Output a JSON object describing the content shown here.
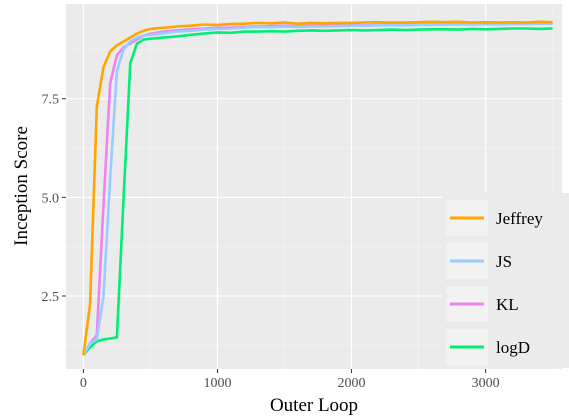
{
  "chart_data": {
    "type": "line",
    "title": "",
    "xlabel": "Outer Loop",
    "ylabel": "Inception Score",
    "xlim": [
      -130,
      3570
    ],
    "ylim": [
      0.65,
      9.9
    ],
    "x_ticks": [
      0,
      1000,
      2000,
      3000
    ],
    "x_tick_labels": [
      "0",
      "1000",
      "2000",
      "3000"
    ],
    "y_ticks": [
      2.5,
      5.0,
      7.5
    ],
    "y_tick_labels": [
      "2.5",
      "5.0",
      "7.5"
    ],
    "grid": true,
    "legend_position": "bottom-right",
    "series": [
      {
        "name": "Jeffrey",
        "color": "#ffa500",
        "x": [
          0,
          50,
          100,
          150,
          200,
          250,
          300,
          350,
          400,
          450,
          500,
          600,
          700,
          800,
          900,
          1000,
          1100,
          1200,
          1300,
          1400,
          1500,
          1600,
          1700,
          1800,
          1900,
          2000,
          2100,
          2200,
          2300,
          2400,
          2500,
          2600,
          2700,
          2800,
          2900,
          3000,
          3100,
          3200,
          3300,
          3400,
          3500
        ],
        "y": [
          1.0,
          2.3,
          7.3,
          8.3,
          8.7,
          8.85,
          8.95,
          9.05,
          9.15,
          9.22,
          9.27,
          9.3,
          9.33,
          9.35,
          9.38,
          9.37,
          9.39,
          9.4,
          9.42,
          9.41,
          9.43,
          9.4,
          9.42,
          9.41,
          9.42,
          9.42,
          9.43,
          9.44,
          9.43,
          9.43,
          9.44,
          9.45,
          9.44,
          9.45,
          9.43,
          9.44,
          9.43,
          9.44,
          9.43,
          9.45,
          9.44
        ]
      },
      {
        "name": "JS",
        "color": "#99ccff",
        "x": [
          0,
          50,
          100,
          150,
          200,
          250,
          300,
          350,
          400,
          450,
          500,
          600,
          700,
          800,
          900,
          1000,
          1100,
          1200,
          1300,
          1400,
          1500,
          1600,
          1700,
          1800,
          1900,
          2000,
          2100,
          2200,
          2300,
          2400,
          2500,
          2600,
          2700,
          2800,
          2900,
          3000,
          3100,
          3200,
          3300,
          3400,
          3500
        ],
        "y": [
          1.0,
          1.3,
          1.4,
          2.5,
          5.5,
          8.2,
          8.75,
          8.95,
          9.05,
          9.1,
          9.12,
          9.16,
          9.2,
          9.22,
          9.25,
          9.27,
          9.28,
          9.3,
          9.32,
          9.31,
          9.33,
          9.32,
          9.33,
          9.33,
          9.34,
          9.35,
          9.35,
          9.36,
          9.36,
          9.36,
          9.37,
          9.37,
          9.38,
          9.38,
          9.38,
          9.39,
          9.38,
          9.39,
          9.39,
          9.4,
          9.4
        ]
      },
      {
        "name": "KL",
        "color": "#ee82ee",
        "x": [
          0,
          50,
          100,
          150,
          200,
          250,
          300,
          350,
          400,
          450,
          500,
          600,
          700,
          800,
          900,
          1000,
          1100,
          1200,
          1300,
          1400,
          1500,
          1600,
          1700,
          1800,
          1900,
          2000,
          2100,
          2200,
          2300,
          2400,
          2500,
          2600,
          2700,
          2800,
          2900,
          3000,
          3100,
          3200,
          3300,
          3400,
          3500
        ],
        "y": [
          1.0,
          1.3,
          1.5,
          4.8,
          7.9,
          8.6,
          8.8,
          8.9,
          9.0,
          9.1,
          9.15,
          9.2,
          9.23,
          9.26,
          9.28,
          9.3,
          9.3,
          9.32,
          9.33,
          9.34,
          9.35,
          9.34,
          9.35,
          9.36,
          9.36,
          9.37,
          9.36,
          9.37,
          9.38,
          9.37,
          9.38,
          9.39,
          9.38,
          9.39,
          9.39,
          9.4,
          9.39,
          9.4,
          9.4,
          9.41,
          9.41
        ]
      },
      {
        "name": "logD",
        "color": "#00ee76",
        "x": [
          0,
          50,
          100,
          150,
          200,
          250,
          300,
          350,
          400,
          450,
          500,
          600,
          700,
          800,
          900,
          1000,
          1100,
          1200,
          1300,
          1400,
          1500,
          1600,
          1700,
          1800,
          1900,
          2000,
          2100,
          2200,
          2300,
          2400,
          2500,
          2600,
          2700,
          2800,
          2900,
          3000,
          3100,
          3200,
          3300,
          3400,
          3500
        ],
        "y": [
          1.0,
          1.2,
          1.35,
          1.4,
          1.42,
          1.45,
          5.0,
          8.4,
          8.9,
          9.0,
          9.02,
          9.05,
          9.08,
          9.12,
          9.15,
          9.18,
          9.17,
          9.2,
          9.2,
          9.21,
          9.2,
          9.22,
          9.23,
          9.22,
          9.23,
          9.24,
          9.23,
          9.24,
          9.25,
          9.24,
          9.25,
          9.26,
          9.26,
          9.25,
          9.27,
          9.26,
          9.27,
          9.28,
          9.28,
          9.27,
          9.28
        ]
      }
    ]
  }
}
